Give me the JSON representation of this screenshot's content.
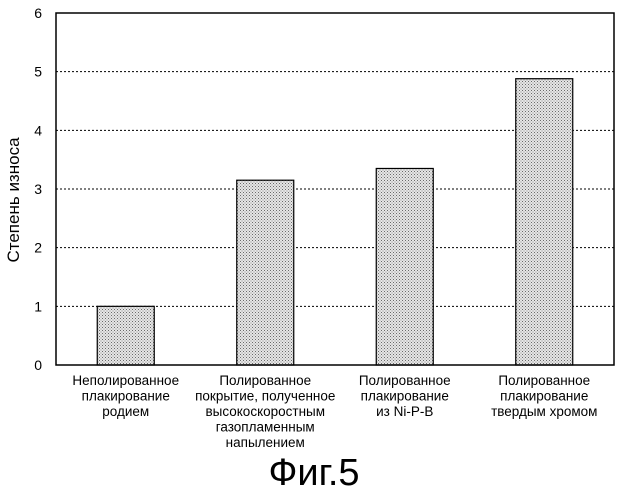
{
  "chart_data": {
    "type": "bar",
    "ylabel": "Степень износа",
    "ylim": [
      0,
      6
    ],
    "yticks": [
      "0",
      "1",
      "2",
      "3",
      "4",
      "5",
      "6"
    ],
    "grid": "horizontal dashed",
    "bar_fill": "dotted gray",
    "categories": [
      [
        "Неполированное",
        "плакирование",
        "родием"
      ],
      [
        "Полированное",
        "покрытие, полученное",
        "высокоскоростным",
        "газопламенным",
        "напылением"
      ],
      [
        "Полированное",
        "плакирование",
        "из Ni-P-B"
      ],
      [
        "Полированное",
        "плакирование",
        "твердым хромом"
      ]
    ],
    "values": [
      1.0,
      3.15,
      3.35,
      4.88
    ]
  },
  "caption": "Фиг.5"
}
